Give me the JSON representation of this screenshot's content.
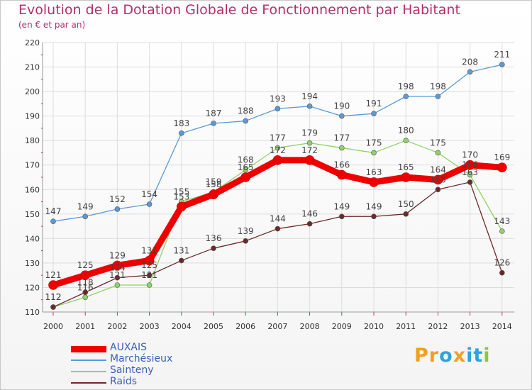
{
  "title": "Evolution de la Dotation Globale de Fonctionnement par Habitant",
  "subtitle": "(en € et par an)",
  "logo": {
    "text": "Proxiti",
    "letters": [
      "P",
      "r",
      "o",
      "x",
      "i",
      "t",
      "i"
    ],
    "colors": [
      "#f0a020",
      "#f0a020",
      "#2ea3d8",
      "#f0a020",
      "#2ea3d8",
      "#2ea3d8",
      "#8cc63f"
    ]
  },
  "chart_data": {
    "type": "line",
    "title": "Evolution de la Dotation Globale de Fonctionnement par Habitant",
    "ylabel": "(en € et par an)",
    "xlabel": "",
    "x": [
      "2000",
      "2001",
      "2002",
      "2003",
      "2004",
      "2005",
      "2006",
      "2007",
      "2008",
      "2009",
      "2010",
      "2011",
      "2012",
      "2013",
      "2014"
    ],
    "ylim": [
      110,
      220
    ],
    "yticks": [
      "110",
      "120",
      "130",
      "140",
      "150",
      "160",
      "170",
      "180",
      "190",
      "200",
      "210",
      "220"
    ],
    "grid": true,
    "legend": "bottom-left",
    "series": [
      {
        "name": "AUXAIS",
        "color": "#ee0000",
        "values": [
          121,
          125,
          129,
          131,
          153,
          158,
          165,
          172,
          172,
          166,
          163,
          165,
          164,
          170,
          169
        ],
        "labels": [
          "121",
          "125",
          "129",
          "131",
          "153",
          "158",
          "165",
          "172",
          "172",
          "166",
          "163",
          "165",
          "164",
          "170",
          "169"
        ]
      },
      {
        "name": "Marchésieux",
        "color": "#5b9ad5",
        "values": [
          147,
          149,
          152,
          154,
          183,
          187,
          188,
          193,
          194,
          190,
          191,
          198,
          198,
          208,
          211
        ],
        "labels": [
          "147",
          "149",
          "152",
          "154",
          "183",
          "187",
          "188",
          "193",
          "194",
          "190",
          "191",
          "198",
          "198",
          "208",
          "211"
        ]
      },
      {
        "name": "Sainteny",
        "color": "#8fd16a",
        "values": [
          112,
          116,
          121,
          121,
          155,
          159,
          168,
          177,
          179,
          177,
          175,
          180,
          175,
          166,
          143
        ],
        "labels": [
          "112",
          "116",
          "121",
          "121",
          "155",
          "159",
          "168",
          "177",
          "179",
          "177",
          "175",
          "180",
          "175",
          "166",
          "143"
        ]
      },
      {
        "name": "Raids",
        "color": "#6b2a2a",
        "values": [
          112,
          118,
          124,
          125,
          131,
          136,
          139,
          144,
          146,
          149,
          149,
          150,
          160,
          163,
          126
        ],
        "labels": [
          "112",
          "118",
          "124",
          "125",
          "131",
          "136",
          "139",
          "144",
          "146",
          "149",
          "149",
          "150",
          "160",
          "163",
          "126"
        ]
      }
    ]
  }
}
